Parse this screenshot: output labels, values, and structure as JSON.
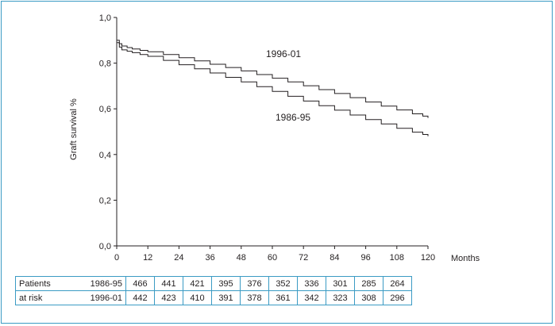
{
  "chart_data": {
    "type": "line",
    "title": "",
    "xlabel": "Months",
    "ylabel": "Graft survival %",
    "xlim": [
      0,
      120
    ],
    "ylim": [
      0.0,
      1.0
    ],
    "x_ticks": [
      0,
      12,
      24,
      36,
      48,
      60,
      72,
      84,
      96,
      108,
      120
    ],
    "x_tick_labels": [
      "0",
      "12",
      "24",
      "36",
      "48",
      "60",
      "72",
      "84",
      "96",
      "108",
      "120"
    ],
    "y_ticks": [
      0.0,
      0.2,
      0.4,
      0.6,
      0.8,
      1.0
    ],
    "y_tick_labels": [
      "0,0",
      "0,2",
      "0,4",
      "0,6",
      "0,8",
      "1,0"
    ],
    "grid": false,
    "series": [
      {
        "name": "1996-01",
        "color": "#231f20",
        "x": [
          0,
          1,
          2,
          4,
          6,
          9,
          12,
          18,
          24,
          30,
          36,
          42,
          48,
          54,
          60,
          66,
          72,
          78,
          84,
          90,
          96,
          102,
          108,
          114,
          118,
          120
        ],
        "y": [
          0.9,
          0.885,
          0.875,
          0.868,
          0.862,
          0.856,
          0.85,
          0.838,
          0.824,
          0.81,
          0.795,
          0.781,
          0.766,
          0.75,
          0.734,
          0.718,
          0.701,
          0.684,
          0.667,
          0.649,
          0.63,
          0.612,
          0.595,
          0.578,
          0.568,
          0.56
        ]
      },
      {
        "name": "1986-95",
        "color": "#231f20",
        "x": [
          0,
          1,
          2,
          4,
          6,
          9,
          12,
          18,
          24,
          30,
          36,
          42,
          48,
          54,
          60,
          66,
          72,
          78,
          84,
          90,
          96,
          102,
          108,
          114,
          118,
          120
        ],
        "y": [
          0.89,
          0.87,
          0.858,
          0.852,
          0.846,
          0.838,
          0.83,
          0.812,
          0.793,
          0.775,
          0.757,
          0.738,
          0.718,
          0.697,
          0.676,
          0.655,
          0.634,
          0.614,
          0.594,
          0.573,
          0.553,
          0.534,
          0.515,
          0.498,
          0.488,
          0.48
        ]
      }
    ],
    "series_labels": [
      "1996-01",
      "1986-95"
    ]
  },
  "risk_table": {
    "label_line1": "Patients",
    "label_line2": "at risk",
    "rows": [
      {
        "group": "1986-95",
        "values": [
          "466",
          "441",
          "421",
          "395",
          "376",
          "352",
          "336",
          "301",
          "285",
          "264"
        ]
      },
      {
        "group": "1996-01",
        "values": [
          "442",
          "423",
          "410",
          "391",
          "378",
          "361",
          "342",
          "323",
          "308",
          "296"
        ]
      }
    ]
  }
}
